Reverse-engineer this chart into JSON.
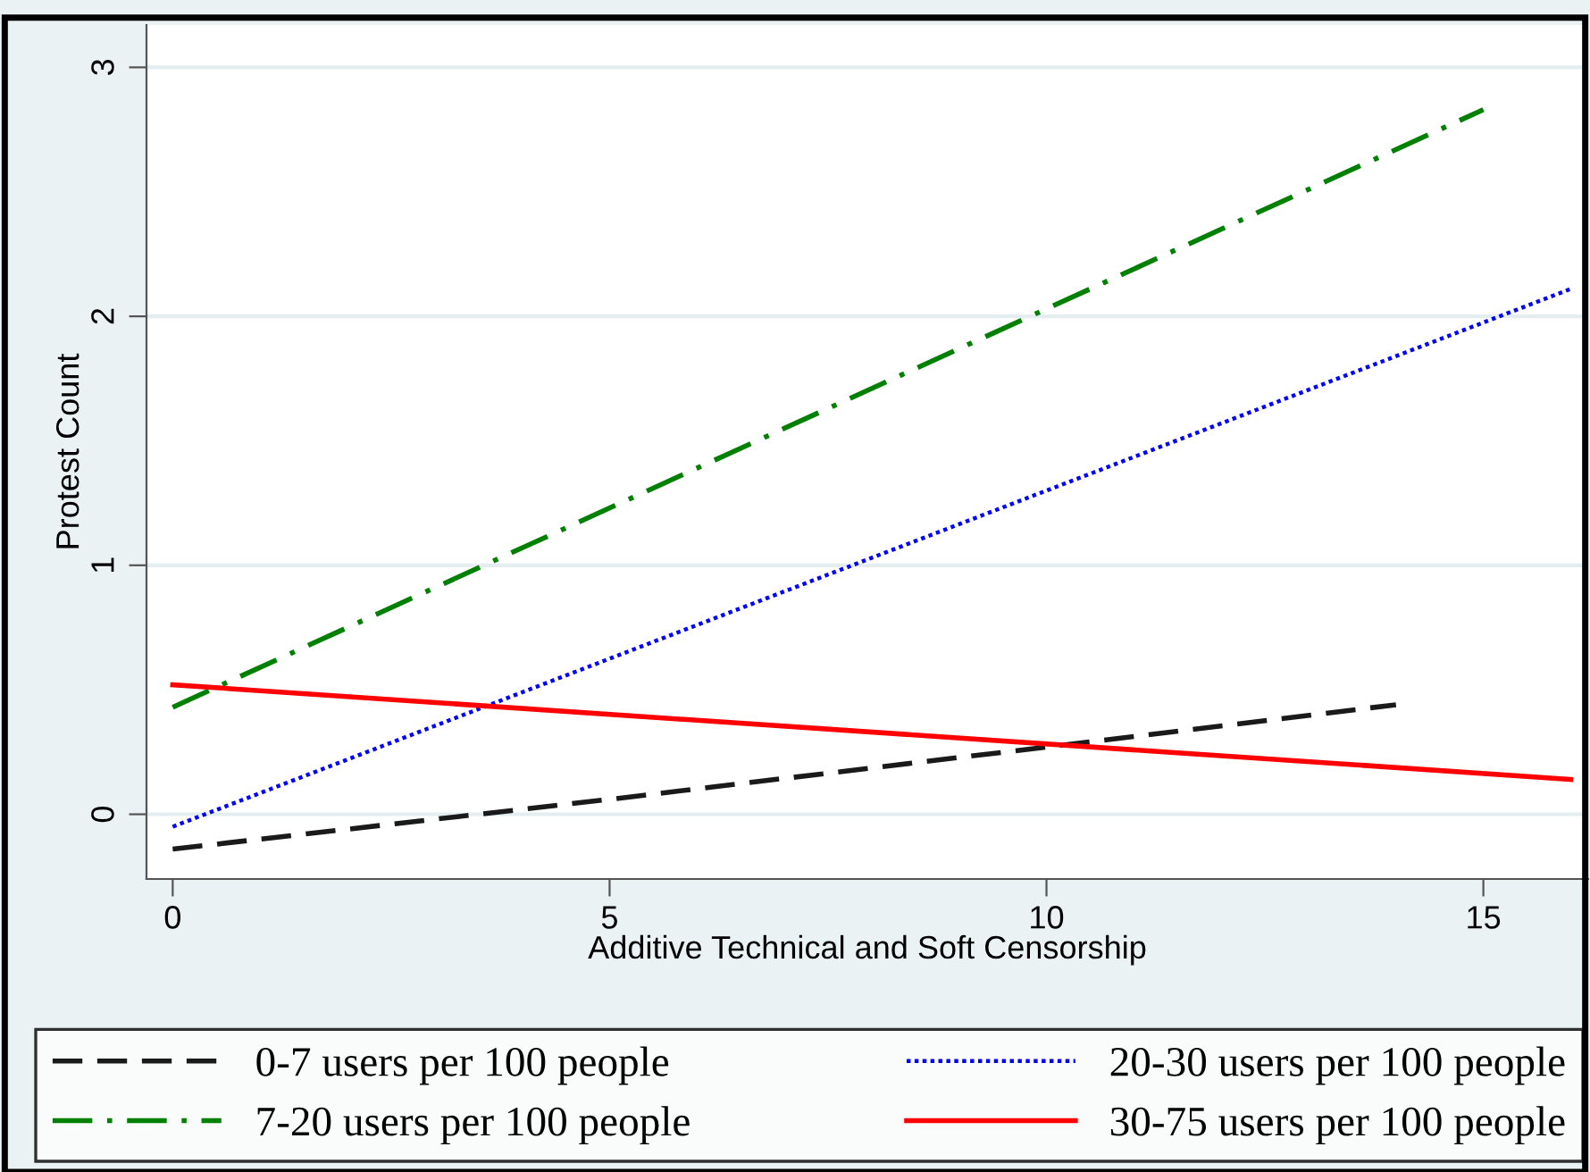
{
  "chart_data": {
    "type": "line",
    "xlabel": "Additive Technical and Soft Censorship",
    "ylabel": "Protest Count",
    "xlim": [
      -0.3,
      16.2
    ],
    "ylim": [
      -0.26,
      3.17
    ],
    "xticks": [
      0,
      5,
      10,
      15
    ],
    "yticks": [
      0,
      1,
      2,
      3
    ],
    "grid": "y",
    "legend": "bottom",
    "marker": "none",
    "series": [
      {
        "name": "0-7 users per 100 people",
        "color": "#1a1a1a",
        "line_style": "dashed",
        "x": [
          0,
          5,
          10,
          14
        ],
        "values": [
          -0.14,
          0.06,
          0.27,
          0.44
        ]
      },
      {
        "name": "7-20 users per 100 people",
        "color": "#008000",
        "line_style": "dashdot",
        "x": [
          0,
          15
        ],
        "values": [
          0.43,
          2.83
        ]
      },
      {
        "name": "20-30 users per 100 people",
        "color": "#0000ff",
        "line_style": "dotted",
        "x": [
          0,
          16
        ],
        "values": [
          -0.05,
          2.11
        ]
      },
      {
        "name": "30-75 users per 100 people",
        "color": "#ff0000",
        "line_style": "solid",
        "x": [
          0,
          16
        ],
        "values": [
          0.52,
          0.14
        ]
      }
    ]
  }
}
